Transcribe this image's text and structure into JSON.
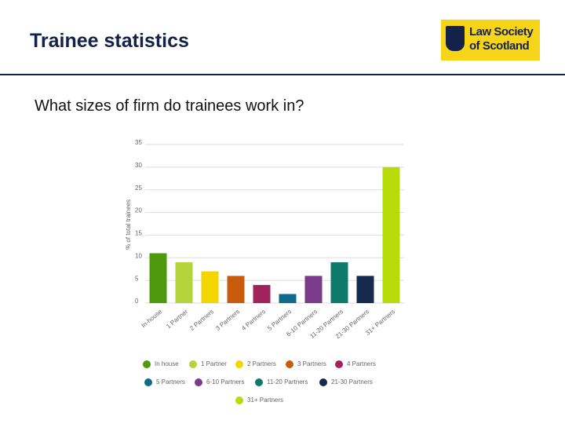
{
  "header": {
    "title": "Trainee statistics",
    "logo_line1": "Law Society",
    "logo_line2": "of Scotland"
  },
  "question": "What sizes of firm do trainees work in?",
  "chart_data": {
    "type": "bar",
    "y_label": "% of total trainees",
    "categories": [
      "In-house",
      "1 Partner",
      "2 Partners",
      "3 Partners",
      "4 Partners",
      "5 Partners",
      "6-10 Partners",
      "11-20 Partners",
      "21-30 Partners",
      "31+ Partners"
    ],
    "legend_labels": [
      "In house",
      "1 Partner",
      "2 Partners",
      "3 Partners",
      "4 Partners",
      "5 Partners",
      "6-10 Partners",
      "11-20 Partners",
      "21-30 Partners",
      "31+ Partners"
    ],
    "values": [
      11,
      9,
      7,
      6,
      4,
      2,
      6,
      9,
      6,
      30
    ],
    "colors": [
      "#4f9a0c",
      "#b3d43a",
      "#f3d600",
      "#c95b0c",
      "#a1235c",
      "#0f6a8b",
      "#7a3b8b",
      "#0f7a6c",
      "#152a4d",
      "#b7dc0a"
    ],
    "ylim": [
      0,
      35
    ],
    "yticks": [
      0,
      5,
      10,
      15,
      20,
      25,
      30,
      35
    ],
    "grid": true
  }
}
